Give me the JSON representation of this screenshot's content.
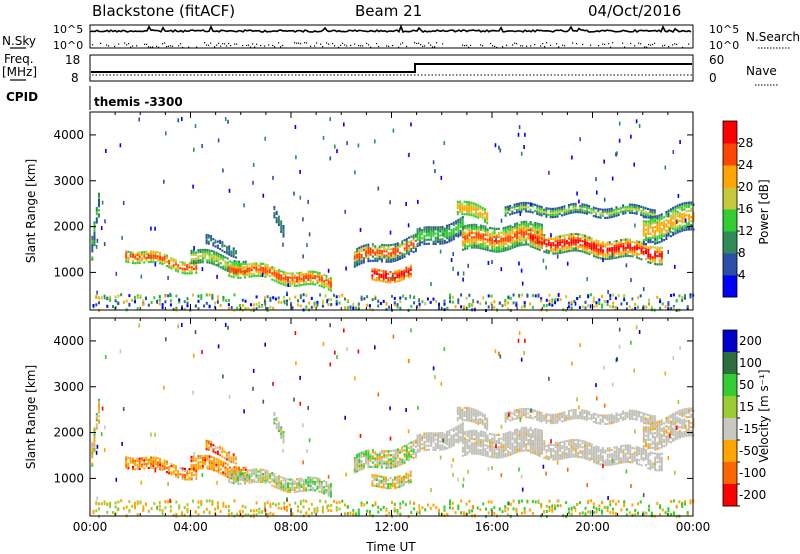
{
  "header": {
    "station": "Blackstone (fitACF)",
    "beam": "Beam 21",
    "date": "04/Oct/2016"
  },
  "top_panels": {
    "nsky_label": "N.Sky",
    "nsky_ticks": [
      "10^5",
      "10^0"
    ],
    "nsearch_label": "N.Search",
    "nsearch_ticks": [
      "10^5",
      "10^0"
    ],
    "freq_label_line1": "Freq.",
    "freq_label_line2": "[MHz]",
    "freq_ticks": [
      "18",
      "8"
    ],
    "nave_label": "Nave",
    "nave_ticks": [
      "60",
      "0"
    ],
    "cpid_label": "CPID",
    "cpid_value": "themis -3300"
  },
  "colors": {
    "power": [
      "#0000ff",
      "#2b4fa8",
      "#2e8b57",
      "#32cd32",
      "#c8c83c",
      "#ffa500",
      "#ff4500",
      "#ff0000"
    ],
    "velocity": [
      "#0000cd",
      "#2e6e3e",
      "#32cd32",
      "#9acd32",
      "#c8c8c0",
      "#ffa500",
      "#ff6600",
      "#ff0000"
    ],
    "ground_scatter": "#c0c0b8"
  },
  "chart_data": [
    {
      "type": "heatmap",
      "name": "power",
      "ylabel": "Slant Range [km]",
      "y_ticks": [
        "1000",
        "2000",
        "3000",
        "4000"
      ],
      "x_ticks": [
        "00:00",
        "04:00",
        "08:00",
        "12:00",
        "16:00",
        "20:00",
        "00:00"
      ],
      "xlim": [
        "00:00",
        "24:00"
      ],
      "ylim": [
        180,
        4500
      ],
      "colorbar_label": "Power [dB]",
      "colorbar_ticks": [
        "4",
        "8",
        "12",
        "16",
        "20",
        "24",
        "28"
      ],
      "colorbar_range": [
        0,
        30
      ]
    },
    {
      "type": "heatmap",
      "name": "velocity",
      "ylabel": "Slant Range [km]",
      "y_ticks": [
        "1000",
        "2000",
        "3000",
        "4000"
      ],
      "x_ticks": [
        "00:00",
        "04:00",
        "08:00",
        "12:00",
        "16:00",
        "20:00",
        "00:00"
      ],
      "xlabel": "Time UT",
      "xlim": [
        "00:00",
        "24:00"
      ],
      "ylim": [
        180,
        4500
      ],
      "colorbar_label": "Velocity [m s⁻¹]",
      "colorbar_ticks": [
        "200",
        "100",
        "50",
        "15",
        "-15",
        "-50",
        "-100",
        "-200"
      ]
    }
  ]
}
